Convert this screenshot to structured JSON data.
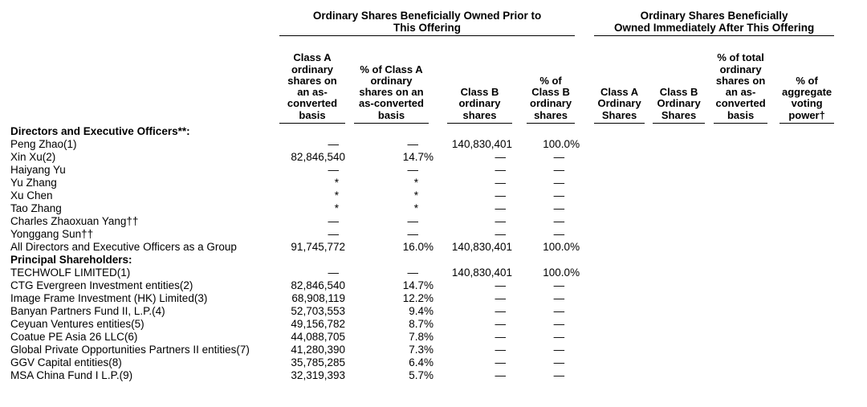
{
  "table": {
    "group_headers": [
      "Ordinary Shares Beneficially Owned Prior to\nThis Offering",
      "Ordinary Shares Beneficially\nOwned Immediately After This Offering"
    ],
    "columns": [
      {
        "label": "Class A\nordinary\nshares on\nan as-\nconverted\nbasis",
        "type": "shares"
      },
      {
        "label": "% of Class A\nordinary\nshares on an\nas-converted\nbasis",
        "type": "percent"
      },
      {
        "label": "Class B\nordinary\nshares",
        "type": "shares"
      },
      {
        "label": "% of\nClass B\nordinary\nshares",
        "type": "percent"
      },
      {
        "label": "Class A\nOrdinary\nShares",
        "type": "shares"
      },
      {
        "label": "Class B\nOrdinary\nShares",
        "type": "shares"
      },
      {
        "label": "% of total\nordinary\nshares on\nan as-\nconverted\nbasis",
        "type": "percent"
      },
      {
        "label": "% of\naggregate\nvoting\npower†",
        "type": "percent"
      }
    ],
    "rows": [
      {
        "label": "Directors and Executive Officers**:",
        "section": true,
        "values": [
          "",
          "",
          "",
          "",
          "",
          "",
          "",
          ""
        ]
      },
      {
        "label": "Peng Zhao(1)",
        "section": false,
        "values": [
          "—",
          "—",
          "140,830,401",
          "100.0%",
          "",
          "",
          "",
          ""
        ]
      },
      {
        "label": "Xin Xu(2)",
        "section": false,
        "values": [
          "82,846,540",
          "14.7%",
          "—",
          "—",
          "",
          "",
          "",
          ""
        ]
      },
      {
        "label": "Haiyang Yu",
        "section": false,
        "values": [
          "—",
          "—",
          "—",
          "—",
          "",
          "",
          "",
          ""
        ]
      },
      {
        "label": "Yu Zhang",
        "section": false,
        "values": [
          "*",
          "*",
          "—",
          "—",
          "",
          "",
          "",
          ""
        ]
      },
      {
        "label": "Xu Chen",
        "section": false,
        "values": [
          "*",
          "*",
          "—",
          "—",
          "",
          "",
          "",
          ""
        ]
      },
      {
        "label": "Tao Zhang",
        "section": false,
        "values": [
          "*",
          "*",
          "—",
          "—",
          "",
          "",
          "",
          ""
        ]
      },
      {
        "label": "Charles Zhaoxuan Yang††",
        "section": false,
        "values": [
          "—",
          "—",
          "—",
          "—",
          "",
          "",
          "",
          ""
        ]
      },
      {
        "label": "Yonggang Sun††",
        "section": false,
        "values": [
          "—",
          "—",
          "—",
          "—",
          "",
          "",
          "",
          ""
        ]
      },
      {
        "label": "All Directors and Executive Officers as a Group",
        "section": false,
        "values": [
          "91,745,772",
          "16.0%",
          "140,830,401",
          "100.0%",
          "",
          "",
          "",
          ""
        ]
      },
      {
        "label": "Principal Shareholders:",
        "section": true,
        "values": [
          "",
          "",
          "",
          "",
          "",
          "",
          "",
          ""
        ]
      },
      {
        "label": "TECHWOLF LIMITED(1)",
        "section": false,
        "values": [
          "—",
          "—",
          "140,830,401",
          "100.0%",
          "",
          "",
          "",
          ""
        ]
      },
      {
        "label": "CTG Evergreen Investment entities(2)",
        "section": false,
        "values": [
          "82,846,540",
          "14.7%",
          "—",
          "—",
          "",
          "",
          "",
          ""
        ]
      },
      {
        "label": "Image Frame Investment (HK) Limited(3)",
        "section": false,
        "values": [
          "68,908,119",
          "12.2%",
          "—",
          "—",
          "",
          "",
          "",
          ""
        ]
      },
      {
        "label": "Banyan Partners Fund II, L.P.(4)",
        "section": false,
        "values": [
          "52,703,553",
          "9.4%",
          "—",
          "—",
          "",
          "",
          "",
          ""
        ]
      },
      {
        "label": "Ceyuan Ventures entities(5)",
        "section": false,
        "values": [
          "49,156,782",
          "8.7%",
          "—",
          "—",
          "",
          "",
          "",
          ""
        ]
      },
      {
        "label": "Coatue PE Asia 26 LLC(6)",
        "section": false,
        "values": [
          "44,088,705",
          "7.8%",
          "—",
          "—",
          "",
          "",
          "",
          ""
        ]
      },
      {
        "label": "Global Private Opportunities Partners II entities(7)",
        "section": false,
        "values": [
          "41,280,390",
          "7.3%",
          "—",
          "—",
          "",
          "",
          "",
          ""
        ]
      },
      {
        "label": "GGV Capital entities(8)",
        "section": false,
        "values": [
          "35,785,285",
          "6.4%",
          "—",
          "—",
          "",
          "",
          "",
          ""
        ]
      },
      {
        "label": "MSA China Fund I L.P.(9)",
        "section": false,
        "values": [
          "32,319,393",
          "5.7%",
          "—",
          "—",
          "",
          "",
          "",
          ""
        ]
      }
    ]
  }
}
